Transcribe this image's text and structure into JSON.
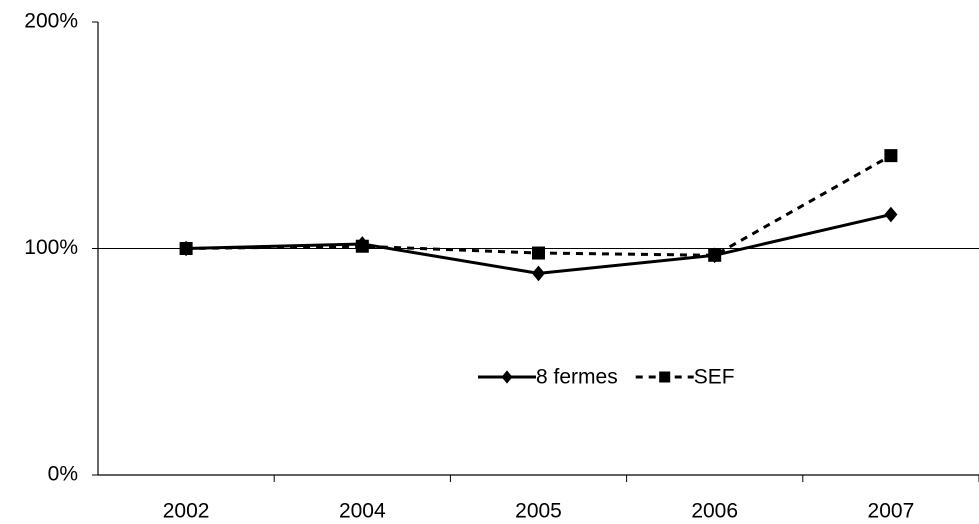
{
  "chart_data": {
    "type": "line",
    "categories": [
      "2002",
      "2004",
      "2005",
      "2006",
      "2007"
    ],
    "series": [
      {
        "name": "8 fermes",
        "color": "#000000",
        "marker": "diamond",
        "dash": "solid",
        "values": [
          100,
          102,
          89,
          97,
          115
        ]
      },
      {
        "name": "SEF",
        "color": "#000000",
        "marker": "square",
        "dash": "dashed",
        "values": [
          100,
          101,
          98,
          97,
          141
        ]
      }
    ],
    "ylim": [
      0,
      200
    ],
    "yticks": [
      {
        "value": 0,
        "label": "0%"
      },
      {
        "value": 100,
        "label": "100%"
      },
      {
        "value": 200,
        "label": "200%"
      }
    ],
    "grid": true,
    "legend": "center"
  }
}
